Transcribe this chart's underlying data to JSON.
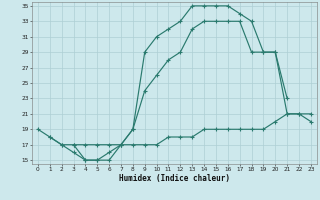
{
  "xlabel": "Humidex (Indice chaleur)",
  "bg_color": "#cde8ec",
  "grid_color": "#aecfd4",
  "line_color": "#2a7a6e",
  "xlim": [
    -0.5,
    23.5
  ],
  "ylim": [
    14.5,
    35.5
  ],
  "xticks": [
    0,
    1,
    2,
    3,
    4,
    5,
    6,
    7,
    8,
    9,
    10,
    11,
    12,
    13,
    14,
    15,
    16,
    17,
    18,
    19,
    20,
    21,
    22,
    23
  ],
  "yticks": [
    15,
    17,
    19,
    21,
    23,
    25,
    27,
    29,
    31,
    33,
    35
  ],
  "curve_upper_x": [
    0,
    1,
    2,
    3,
    4,
    5,
    6,
    7,
    8,
    9,
    10,
    11,
    12,
    13,
    14,
    15,
    16,
    17,
    18,
    19,
    20,
    21
  ],
  "curve_upper_y": [
    19,
    18,
    17,
    16,
    15,
    15,
    16,
    17,
    19,
    29,
    31,
    32,
    33,
    35,
    35,
    35,
    35,
    34,
    33,
    29,
    29,
    23
  ],
  "curve_middle_x": [
    3,
    4,
    5,
    6,
    7,
    8,
    9,
    10,
    11,
    12,
    13,
    14,
    15,
    16,
    17,
    18,
    19,
    20,
    21,
    22,
    23
  ],
  "curve_middle_y": [
    17,
    15,
    15,
    15,
    17,
    19,
    24,
    26,
    28,
    29,
    32,
    33,
    33,
    33,
    33,
    29,
    29,
    29,
    21,
    21,
    20
  ],
  "curve_lower_x": [
    1,
    2,
    3,
    4,
    5,
    6,
    7,
    8,
    9,
    10,
    11,
    12,
    13,
    14,
    15,
    16,
    17,
    18,
    19,
    20,
    21,
    22,
    23
  ],
  "curve_lower_y": [
    18,
    17,
    17,
    17,
    17,
    17,
    17,
    17,
    17,
    17,
    18,
    18,
    18,
    19,
    19,
    19,
    19,
    19,
    19,
    20,
    21,
    21,
    21
  ]
}
